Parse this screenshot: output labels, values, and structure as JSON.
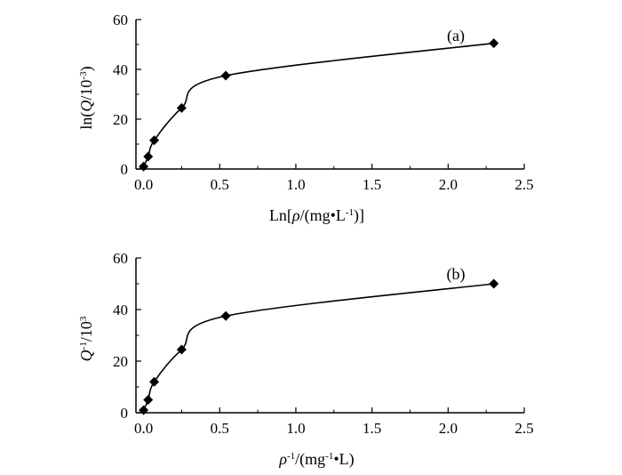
{
  "chart_data": [
    {
      "type": "scatter",
      "panel_label": "(a)",
      "xlabel": "Ln[ρ/(mg•L⁻¹)]",
      "ylabel": "ln(Q/10⁻³)",
      "xlim": [
        -0.05,
        2.5
      ],
      "ylim": [
        0,
        60
      ],
      "xticks": [
        "0.0",
        "0.5",
        "1.0",
        "1.5",
        "2.0",
        "2.5"
      ],
      "yticks": [
        "0",
        "20",
        "40",
        "60"
      ],
      "grid": false,
      "series": [
        {
          "marker": "diamond",
          "line": "smooth",
          "x": [
            0.0,
            0.03,
            0.07,
            0.25,
            0.54,
            2.3
          ],
          "y": [
            1,
            5,
            11.5,
            24.5,
            37.5,
            50.5
          ]
        }
      ]
    },
    {
      "type": "scatter",
      "panel_label": "(b)",
      "xlabel": "ρ⁻¹/(mg⁻¹•L)",
      "ylabel": "Q⁻¹/10³",
      "xlim": [
        -0.05,
        2.5
      ],
      "ylim": [
        0,
        60
      ],
      "xticks": [
        "0.0",
        "0.5",
        "1.0",
        "1.5",
        "2.0",
        "2.5"
      ],
      "yticks": [
        "0",
        "20",
        "40",
        "60"
      ],
      "grid": false,
      "series": [
        {
          "marker": "diamond",
          "line": "smooth",
          "x": [
            0.0,
            0.03,
            0.07,
            0.25,
            0.54,
            2.3
          ],
          "y": [
            1,
            5,
            12,
            24.5,
            37.5,
            50
          ]
        }
      ]
    }
  ]
}
